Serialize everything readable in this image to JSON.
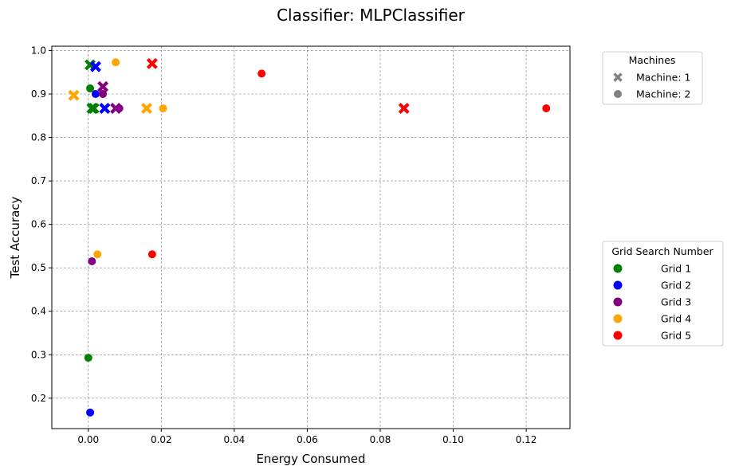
{
  "chart_data": {
    "type": "scatter",
    "title": "Classifier: MLPClassifier",
    "xlabel": "Energy Consumed",
    "ylabel": "Test Accuracy",
    "xlim": [
      -0.01,
      0.132
    ],
    "ylim": [
      0.13,
      1.01
    ],
    "x_ticks": [
      0.0,
      0.02,
      0.04,
      0.06,
      0.08,
      0.1,
      0.12
    ],
    "x_tick_labels": [
      "0.00",
      "0.02",
      "0.04",
      "0.06",
      "0.08",
      "0.10",
      "0.12"
    ],
    "y_ticks": [
      0.2,
      0.3,
      0.4,
      0.5,
      0.6,
      0.7,
      0.8,
      0.9,
      1.0
    ],
    "y_tick_labels": [
      "0.2",
      "0.3",
      "0.4",
      "0.5",
      "0.6",
      "0.7",
      "0.8",
      "0.9",
      "1.0"
    ],
    "grid": true,
    "legend_machines": {
      "title": "Machines",
      "placement": "top-right outside",
      "entries": [
        {
          "label": "Machine: 1",
          "marker": "x"
        },
        {
          "label": "Machine: 2",
          "marker": "o"
        }
      ],
      "color": "#808080"
    },
    "legend_grids": {
      "title": "Grid Search Number",
      "placement": "right outside",
      "entries": [
        {
          "label": "Grid 1",
          "color": "#008000"
        },
        {
          "label": "Grid 2",
          "color": "#0000ff"
        },
        {
          "label": "Grid 3",
          "color": "#800080"
        },
        {
          "label": "Grid 4",
          "color": "#ffa500"
        },
        {
          "label": "Grid 5",
          "color": "#ff0000"
        }
      ]
    },
    "series": [
      {
        "grid": 1,
        "machine": 1,
        "color": "#008000",
        "points": [
          [
            0.0005,
            0.967
          ],
          [
            0.001,
            0.867
          ],
          [
            0.0015,
            0.867
          ]
        ]
      },
      {
        "grid": 1,
        "machine": 2,
        "color": "#008000",
        "points": [
          [
            0.0005,
            0.913
          ],
          [
            0.0,
            0.293
          ]
        ]
      },
      {
        "grid": 2,
        "machine": 1,
        "color": "#0000ff",
        "points": [
          [
            0.002,
            0.963
          ],
          [
            0.0045,
            0.867
          ]
        ]
      },
      {
        "grid": 2,
        "machine": 2,
        "color": "#0000ff",
        "points": [
          [
            0.002,
            0.9
          ],
          [
            0.0005,
            0.167
          ]
        ]
      },
      {
        "grid": 3,
        "machine": 1,
        "color": "#800080",
        "points": [
          [
            0.004,
            0.917
          ],
          [
            0.0075,
            0.867
          ]
        ]
      },
      {
        "grid": 3,
        "machine": 2,
        "color": "#800080",
        "points": [
          [
            0.004,
            0.9
          ],
          [
            0.0085,
            0.867
          ],
          [
            0.001,
            0.515
          ]
        ]
      },
      {
        "grid": 4,
        "machine": 1,
        "color": "#ffa500",
        "points": [
          [
            -0.004,
            0.897
          ],
          [
            0.016,
            0.867
          ]
        ]
      },
      {
        "grid": 4,
        "machine": 2,
        "color": "#ffa500",
        "points": [
          [
            0.0075,
            0.973
          ],
          [
            0.0205,
            0.867
          ],
          [
            0.0025,
            0.531
          ]
        ]
      },
      {
        "grid": 5,
        "machine": 1,
        "color": "#ff0000",
        "points": [
          [
            0.0175,
            0.97
          ],
          [
            0.0865,
            0.867
          ]
        ]
      },
      {
        "grid": 5,
        "machine": 2,
        "color": "#ff0000",
        "points": [
          [
            0.0475,
            0.947
          ],
          [
            0.1255,
            0.867
          ],
          [
            0.0175,
            0.531
          ]
        ]
      }
    ]
  }
}
